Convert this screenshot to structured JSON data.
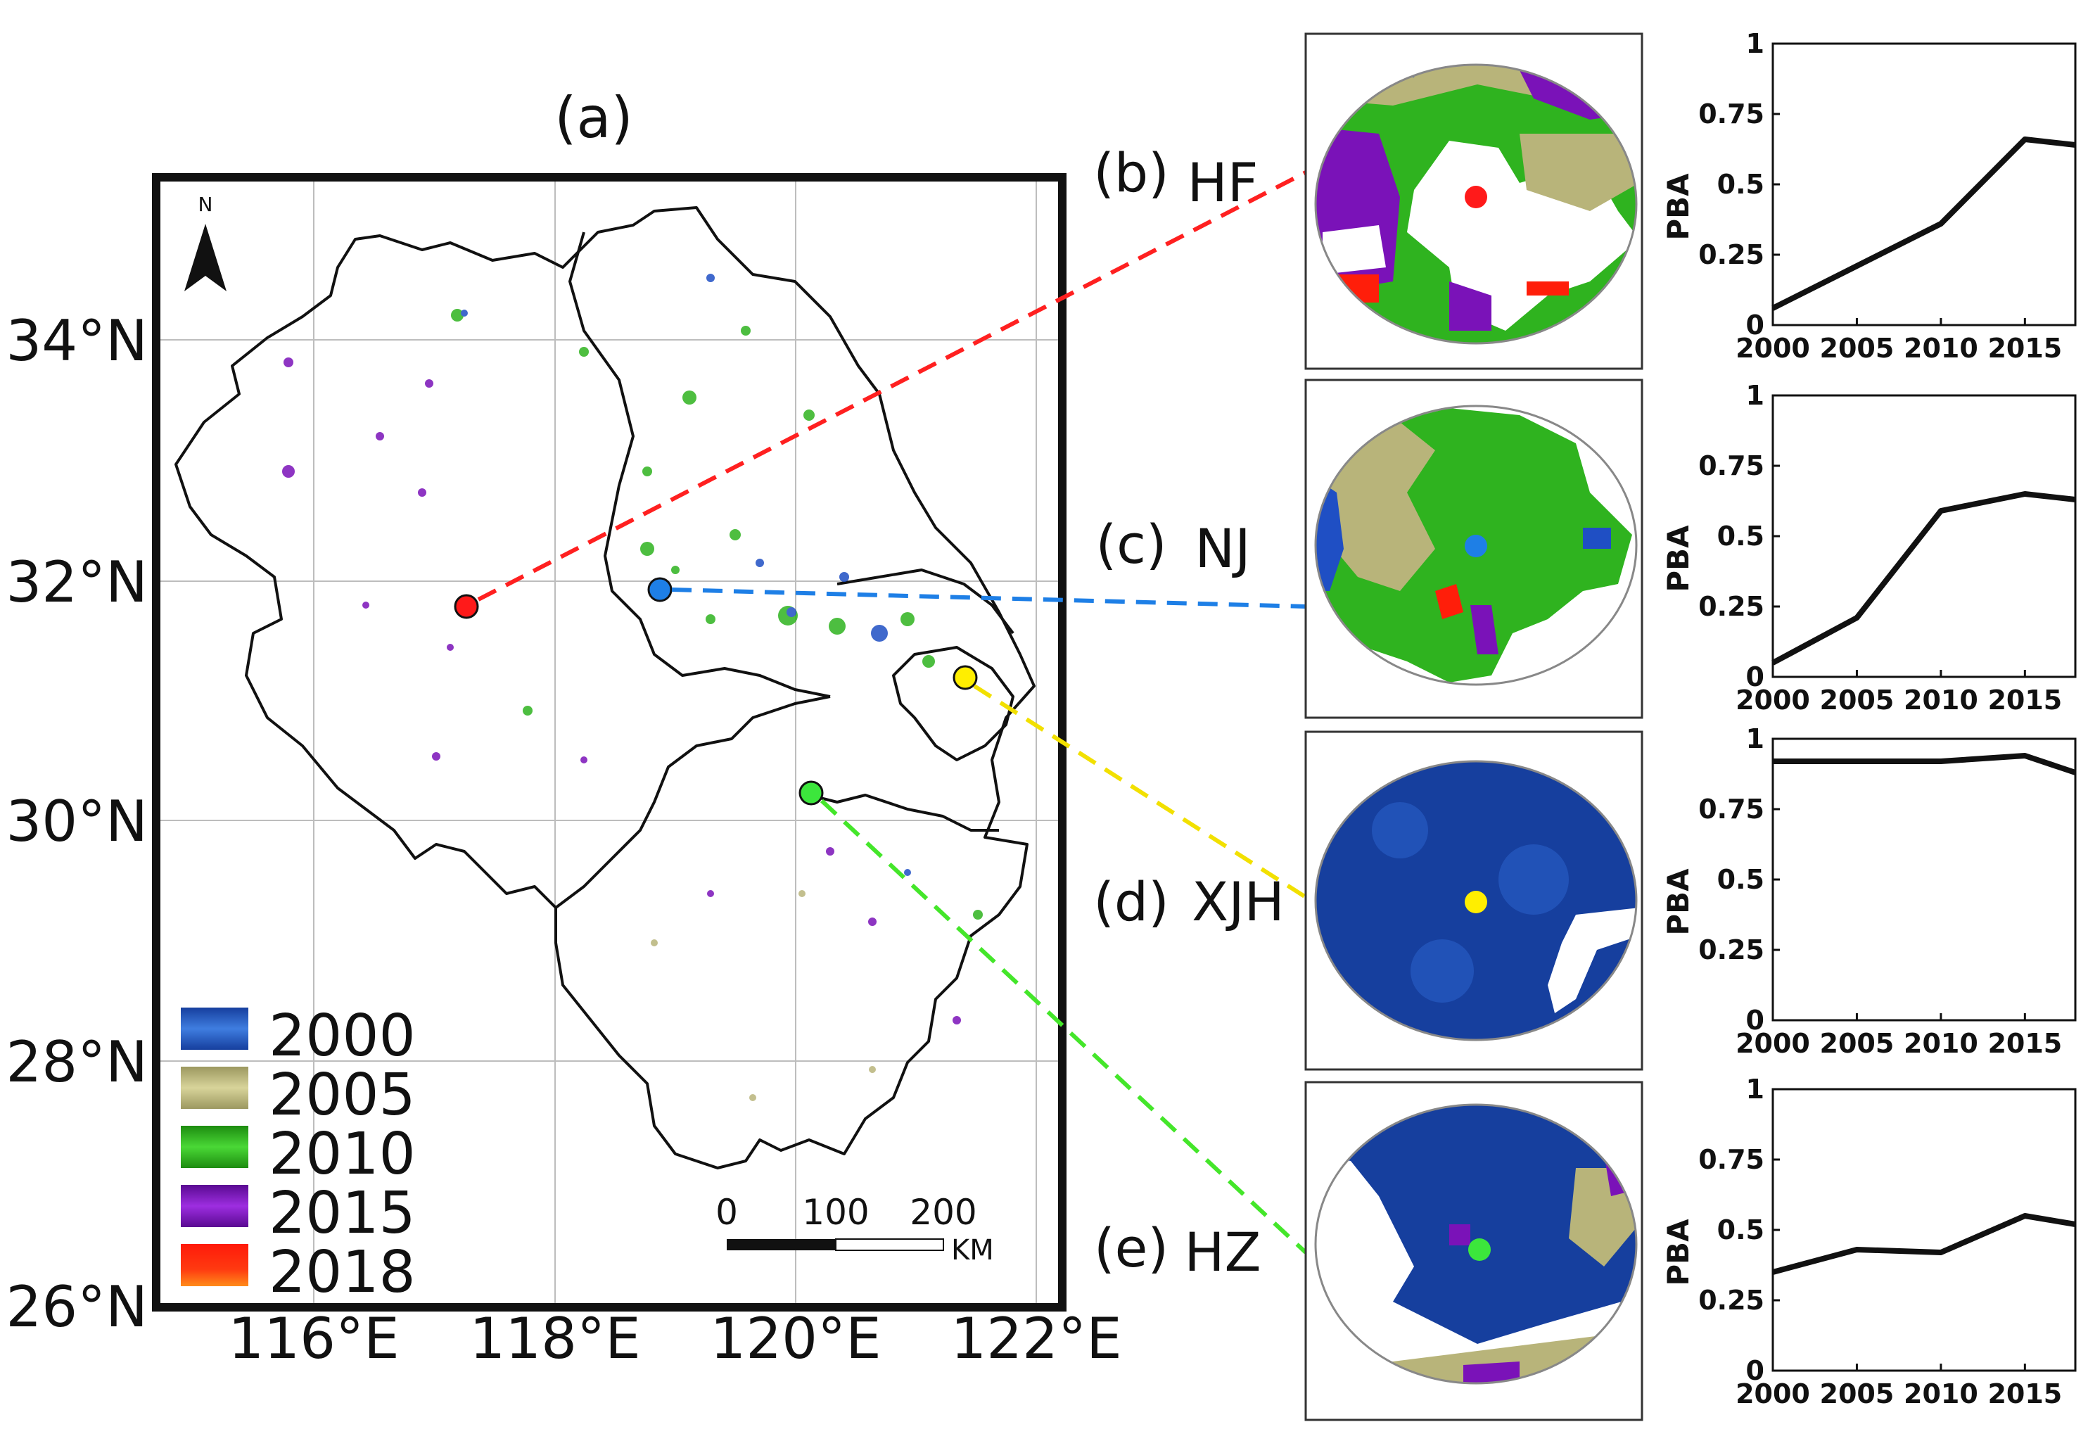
{
  "map": {
    "panel_label": "(a)",
    "lat_labels": [
      "34°N",
      "32°N",
      "30°N",
      "28°N",
      "26°N"
    ],
    "lon_labels": [
      "116°E",
      "118°E",
      "120°E",
      "122°E"
    ],
    "north_label": "N",
    "scale": {
      "ticks": [
        "0",
        "100",
        "200"
      ],
      "unit": "KM"
    },
    "legend": [
      {
        "label": "2000",
        "color": "#1f4fc4"
      },
      {
        "label": "2005",
        "color": "#b8b47a"
      },
      {
        "label": "2010",
        "color": "#2fb31f"
      },
      {
        "label": "2015",
        "color": "#7a12b8"
      },
      {
        "label": "2018",
        "color": "#ff1e0a"
      }
    ]
  },
  "sites": [
    {
      "panel": "(b)",
      "code": "HF",
      "marker_color": "#ff1a1a",
      "line_color": "#ff2020"
    },
    {
      "panel": "(c)",
      "code": "NJ",
      "marker_color": "#1e7fe6",
      "line_color": "#1e7fe6"
    },
    {
      "panel": "(d)",
      "code": "XJH",
      "marker_color": "#ffee00",
      "line_color": "#f2e000"
    },
    {
      "panel": "(e)",
      "code": "HZ",
      "marker_color": "#3ce63c",
      "line_color": "#44e62a"
    }
  ],
  "chart_data": [
    {
      "type": "line",
      "title": "",
      "xlabel": "",
      "ylabel": "PBA",
      "x": [
        2000,
        2005,
        2010,
        2015,
        2018
      ],
      "y": [
        0.06,
        0.21,
        0.36,
        0.66,
        0.64
      ],
      "xlim": [
        2000,
        2018
      ],
      "ylim": [
        0,
        1
      ],
      "xticks": [
        "2000",
        "2005",
        "2010",
        "2015"
      ],
      "yticks": [
        "0",
        "0.25",
        "0.5",
        "0.75",
        "1"
      ]
    },
    {
      "type": "line",
      "title": "",
      "xlabel": "",
      "ylabel": "PBA",
      "x": [
        2000,
        2005,
        2010,
        2015,
        2018
      ],
      "y": [
        0.05,
        0.21,
        0.59,
        0.65,
        0.63
      ],
      "xlim": [
        2000,
        2018
      ],
      "ylim": [
        0,
        1
      ],
      "xticks": [
        "2000",
        "2005",
        "2010",
        "2015"
      ],
      "yticks": [
        "0",
        "0.25",
        "0.5",
        "0.75",
        "1"
      ]
    },
    {
      "type": "line",
      "title": "",
      "xlabel": "",
      "ylabel": "PBA",
      "x": [
        2000,
        2005,
        2010,
        2015,
        2018
      ],
      "y": [
        0.92,
        0.92,
        0.92,
        0.94,
        0.88
      ],
      "xlim": [
        2000,
        2018
      ],
      "ylim": [
        0,
        1
      ],
      "xticks": [
        "2000",
        "2005",
        "2010",
        "2015"
      ],
      "yticks": [
        "0",
        "0.25",
        "0.5",
        "0.75",
        "1"
      ]
    },
    {
      "type": "line",
      "title": "",
      "xlabel": "",
      "ylabel": "PBA",
      "x": [
        2000,
        2005,
        2010,
        2015,
        2018
      ],
      "y": [
        0.35,
        0.43,
        0.42,
        0.55,
        0.52
      ],
      "xlim": [
        2000,
        2018
      ],
      "ylim": [
        0,
        1
      ],
      "xticks": [
        "2000",
        "2005",
        "2010",
        "2015"
      ],
      "yticks": [
        "0",
        "0.25",
        "0.5",
        "0.75",
        "1"
      ]
    }
  ]
}
